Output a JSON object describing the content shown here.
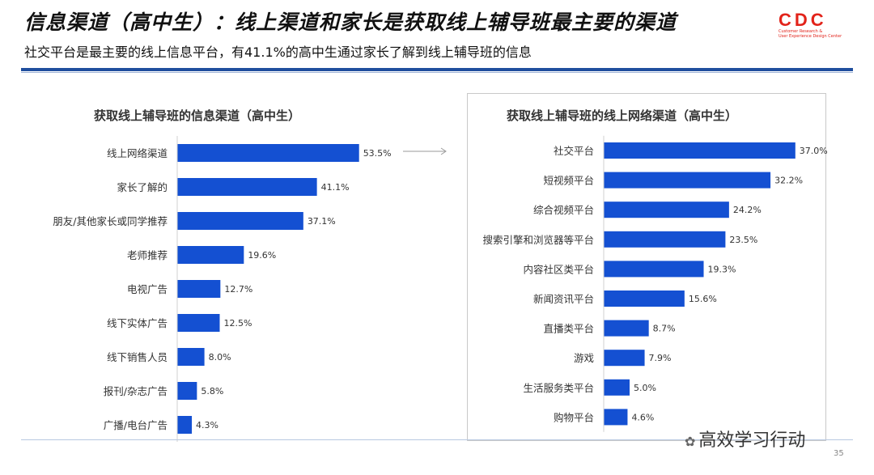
{
  "header": {
    "title": "信息渠道（高中生）：线上渠道和家长是获取线上辅导班最主要的渠道",
    "subtitle": "社交平台是最主要的线上信息平台，有41.1%的高中生通过家长了解到线上辅导班的信息"
  },
  "logo": {
    "mark": "CDC",
    "line1": "Customer Research &",
    "line2": "User Experience Design Center",
    "color": "#e2231a"
  },
  "footer": {
    "watermark": "高效学习行动",
    "page_number": "35"
  },
  "colors": {
    "bar": "#1450d2",
    "accent_rule": "#1f4e9e"
  },
  "chart_data": [
    {
      "type": "bar",
      "orientation": "horizontal",
      "title": "获取线上辅导班的信息渠道（高中生）",
      "categories": [
        "线上网络渠道",
        "家长了解的",
        "朋友/其他家长或同学推荐",
        "老师推荐",
        "电视广告",
        "线下实体广告",
        "线下销售人员",
        "报刊/杂志广告",
        "广播/电台广告"
      ],
      "values": [
        53.5,
        41.1,
        37.1,
        19.6,
        12.7,
        12.5,
        8.0,
        5.8,
        4.3
      ],
      "labels": [
        "53.5%",
        "41.1%",
        "37.1%",
        "19.6%",
        "12.7%",
        "12.5%",
        "8.0%",
        "5.8%",
        "4.3%"
      ],
      "unit": "%",
      "grid": false,
      "legend": false
    },
    {
      "type": "bar",
      "orientation": "horizontal",
      "title": "获取线上辅导班的线上网络渠道（高中生）",
      "categories": [
        "社交平台",
        "短视频平台",
        "综合视频平台",
        "搜索引擎和浏览器等平台",
        "内容社区类平台",
        "新闻资讯平台",
        "直播类平台",
        "游戏",
        "生活服务类平台",
        "购物平台"
      ],
      "values": [
        37.0,
        32.2,
        24.2,
        23.5,
        19.3,
        15.6,
        8.7,
        7.9,
        5.0,
        4.6
      ],
      "labels": [
        "37.0%",
        "32.2%",
        "24.2%",
        "23.5%",
        "19.3%",
        "15.6%",
        "8.7%",
        "7.9%",
        "5.0%",
        "4.6%"
      ],
      "unit": "%",
      "grid": false,
      "legend": false
    }
  ]
}
